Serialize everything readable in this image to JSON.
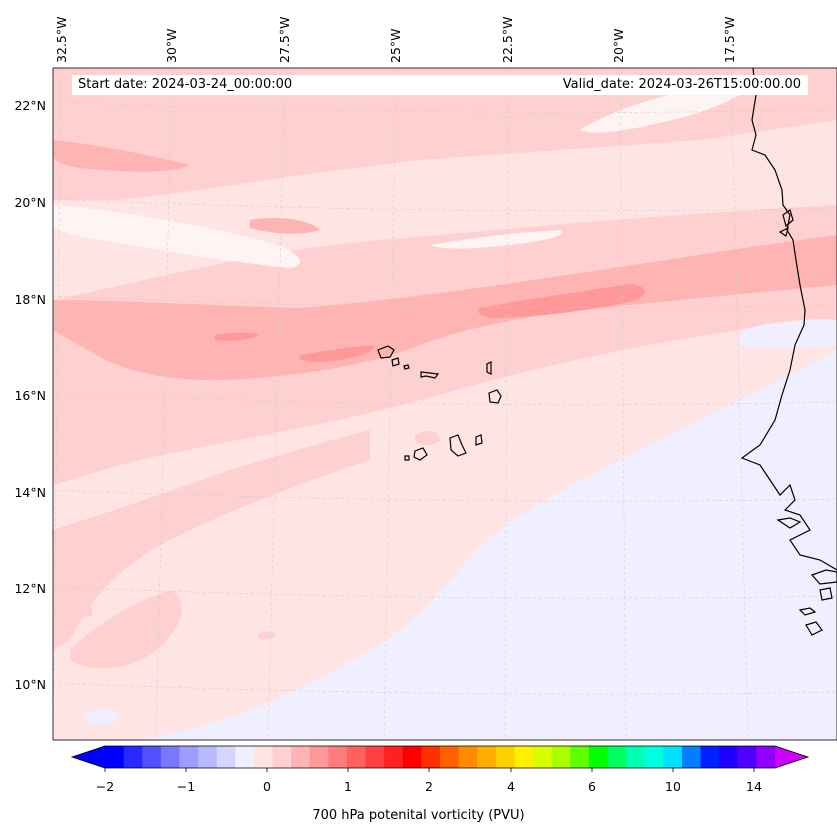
{
  "header": {
    "start_date": "Start date: 2024-03-24_00:00:00",
    "valid_date": "Valid_date: 2024-03-26T15:00:00.00"
  },
  "axes": {
    "lon_labels": [
      "32.5°W",
      "30°W",
      "27.5°W",
      "25°W",
      "22.5°W",
      "20°W",
      "17.5°W"
    ],
    "lat_labels": [
      "22°N",
      "20°N",
      "18°N",
      "16°N",
      "14°N",
      "12°N",
      "10°N"
    ]
  },
  "colorbar": {
    "label": "700 hPa potenital vorticity (PVU)",
    "tick_labels": [
      "−2",
      "−1",
      "0",
      "1",
      "2",
      "4",
      "6",
      "10",
      "14"
    ],
    "colors": [
      "#0000ff",
      "#2828ff",
      "#5050ff",
      "#7878ff",
      "#9c9cff",
      "#b8b8ff",
      "#d4d4ff",
      "#efefff",
      "#ffe4e4",
      "#ffd0d0",
      "#ffb4b4",
      "#ff9898",
      "#ff7c7c",
      "#ff6060",
      "#ff4040",
      "#ff2020",
      "#ff0000",
      "#ff3000",
      "#ff6000",
      "#ff8c00",
      "#ffae00",
      "#ffd000",
      "#fff000",
      "#d8ff00",
      "#a8ff00",
      "#60ff00",
      "#00ff00",
      "#00ff60",
      "#00ffb0",
      "#00ffe0",
      "#00e0ff",
      "#0080ff",
      "#0020ff",
      "#2000ff",
      "#5000ff",
      "#9000ff"
    ],
    "extend_low_color": "#0000ff",
    "extend_high_color": "#cc00ff"
  },
  "map": {
    "base_color": "#ffe4e4",
    "colors": {
      "light_pink": "#ffd0d0",
      "medium_pink": "#ffb4b4",
      "dark_pink": "#ff9898",
      "pale_blue": "#efefff",
      "near_white": "#fff4f4"
    }
  }
}
